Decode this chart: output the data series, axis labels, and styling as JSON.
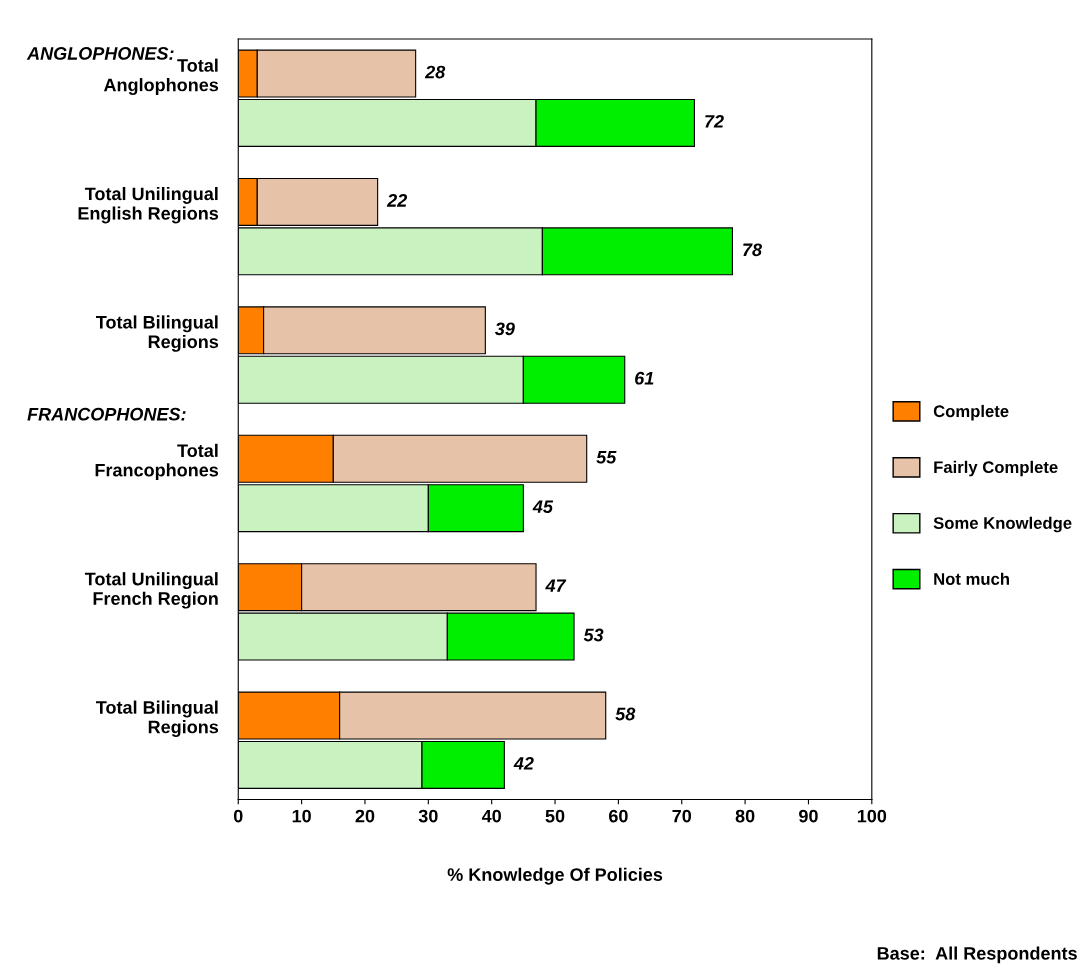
{
  "chart_data": {
    "type": "bar",
    "orientation": "horizontal",
    "stacked": true,
    "categories": [
      "Total\nAnglophones",
      null,
      "Total Unilingual\nEnglish Regions",
      null,
      "Total Bilingual\nRegions",
      null,
      "Total\nFrancophones",
      null,
      "Total Unilingual\nFrench Region",
      null,
      "Total Bilingual\nRegions",
      null
    ],
    "series": [
      {
        "name": "Complete",
        "color": "#ff7f00",
        "values": [
          3,
          null,
          3,
          null,
          4,
          null,
          15,
          null,
          10,
          null,
          16,
          null
        ]
      },
      {
        "name": "Fairly Complete",
        "color": "#e6c3a8",
        "values": [
          25,
          null,
          19,
          null,
          35,
          null,
          40,
          null,
          37,
          null,
          42,
          null
        ]
      },
      {
        "name": "Some Knowledge",
        "color": "#c9f2c0",
        "values": [
          null,
          47,
          null,
          48,
          null,
          45,
          null,
          30,
          null,
          33,
          null,
          29
        ]
      },
      {
        "name": "Not much",
        "color": "#00ee00",
        "values": [
          null,
          25,
          null,
          30,
          null,
          16,
          null,
          15,
          null,
          20,
          null,
          13
        ]
      }
    ],
    "totals": [
      "28",
      "72",
      "22",
      "78",
      "39",
      "61",
      "55",
      "45",
      "47",
      "53",
      "58",
      "42"
    ],
    "xlim": [
      0,
      100
    ],
    "xticks": [
      0,
      10,
      20,
      30,
      40,
      50,
      60,
      70,
      80,
      90,
      100
    ],
    "xlabel": "% Knowledge Of Policies",
    "annotations": [
      "ANGLOPHONES:",
      "FRANCOPHONES:",
      "Base:  All Respondents"
    ],
    "legend": "right",
    "grid": false
  }
}
